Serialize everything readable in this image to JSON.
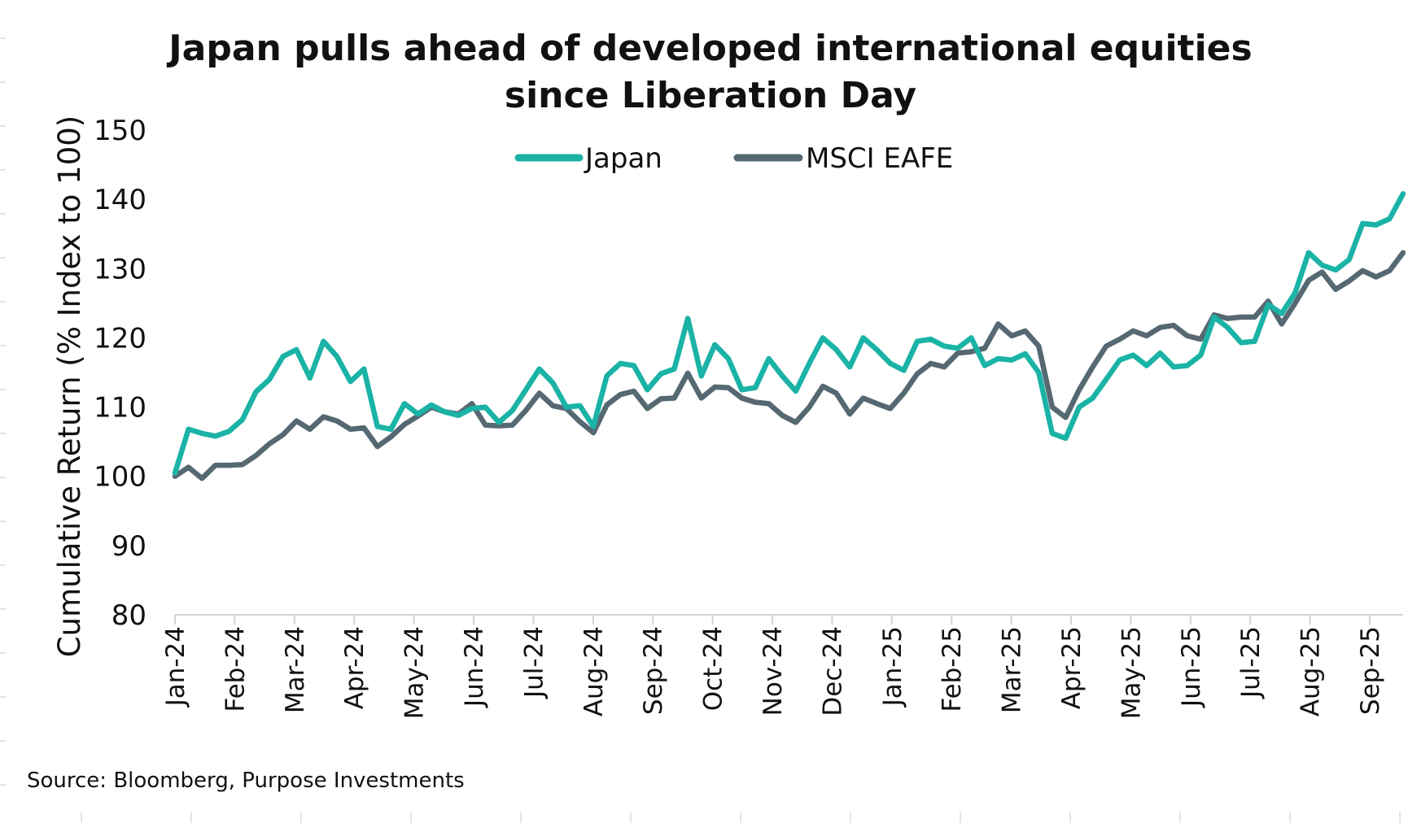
{
  "chart_data": {
    "type": "line",
    "title": "Japan pulls ahead of developed international equities since Liberation Day",
    "title_lines": [
      "Japan pulls ahead of developed international equities",
      "since Liberation Day"
    ],
    "ylabel": "Cumulative Return (% Index to 100)",
    "xlabel": "",
    "ylim": [
      80,
      150
    ],
    "yticks": [
      80,
      90,
      100,
      110,
      120,
      130,
      140,
      150
    ],
    "x_labels": [
      "Jan-24",
      "Feb-24",
      "Mar-24",
      "Apr-24",
      "May-24",
      "Jun-24",
      "Jul-24",
      "Aug-24",
      "Sep-24",
      "Oct-24",
      "Nov-24",
      "Dec-24",
      "Jan-25",
      "Feb-25",
      "Mar-25",
      "Apr-25",
      "May-25",
      "Jun-25",
      "Jul-25",
      "Aug-25",
      "Sep-25"
    ],
    "grid": false,
    "legend": "top-center",
    "colors": {
      "Japan": "#1ab3a6",
      "MSCI EAFE": "#566872"
    },
    "series": [
      {
        "name": "Japan",
        "values": [
          100.5,
          106.8,
          106.2,
          105.8,
          106.5,
          108.2,
          112.2,
          114.0,
          117.3,
          118.3,
          114.2,
          119.5,
          117.3,
          113.7,
          115.5,
          107.2,
          106.8,
          110.5,
          109.0,
          110.3,
          109.3,
          108.8,
          109.8,
          110.0,
          107.8,
          109.5,
          112.5,
          115.5,
          113.5,
          110.0,
          110.2,
          107.2,
          114.5,
          116.3,
          116.0,
          112.5,
          114.8,
          115.5,
          122.8,
          114.5,
          119.0,
          117.0,
          112.5,
          112.8,
          117.0,
          114.5,
          112.3,
          116.3,
          120.0,
          118.3,
          115.8,
          120.0,
          118.3,
          116.3,
          115.3,
          119.5,
          119.8,
          118.8,
          118.5,
          120.0,
          116.0,
          117.0,
          116.8,
          117.7,
          115.0,
          106.2,
          105.5,
          110.0,
          111.3,
          114.0,
          116.8,
          117.5,
          116.0,
          117.8,
          115.8,
          116.0,
          117.5,
          123.0,
          121.5,
          119.3,
          119.5,
          124.8,
          123.5,
          126.5,
          132.3,
          130.5,
          129.8,
          131.3,
          136.5,
          136.3,
          137.2,
          140.8
        ]
      },
      {
        "name": "MSCI EAFE",
        "values": [
          100.0,
          101.3,
          99.7,
          101.6,
          101.6,
          101.7,
          103.0,
          104.7,
          106.0,
          108.0,
          106.8,
          108.6,
          108.0,
          106.8,
          107.0,
          104.3,
          105.7,
          107.5,
          108.7,
          110.0,
          109.3,
          109.0,
          110.5,
          107.4,
          107.3,
          107.4,
          109.5,
          112.0,
          110.2,
          109.8,
          107.9,
          106.3,
          110.3,
          111.8,
          112.3,
          109.8,
          111.2,
          111.3,
          114.9,
          111.3,
          112.9,
          112.8,
          111.3,
          110.7,
          110.5,
          108.8,
          107.8,
          110.0,
          113.0,
          112.0,
          109.0,
          111.3,
          110.5,
          109.8,
          112.0,
          114.8,
          116.3,
          115.8,
          117.8,
          118.0,
          118.5,
          122.0,
          120.3,
          121.0,
          118.8,
          110.0,
          108.5,
          112.5,
          115.8,
          118.8,
          119.8,
          121.0,
          120.3,
          121.5,
          121.8,
          120.3,
          119.8,
          123.3,
          122.8,
          123.0,
          123.0,
          125.3,
          122.0,
          125.0,
          128.3,
          129.5,
          127.0,
          128.2,
          129.7,
          128.8,
          129.7,
          132.3
        ]
      }
    ]
  },
  "source": "Source: Bloomberg, Purpose Investments"
}
